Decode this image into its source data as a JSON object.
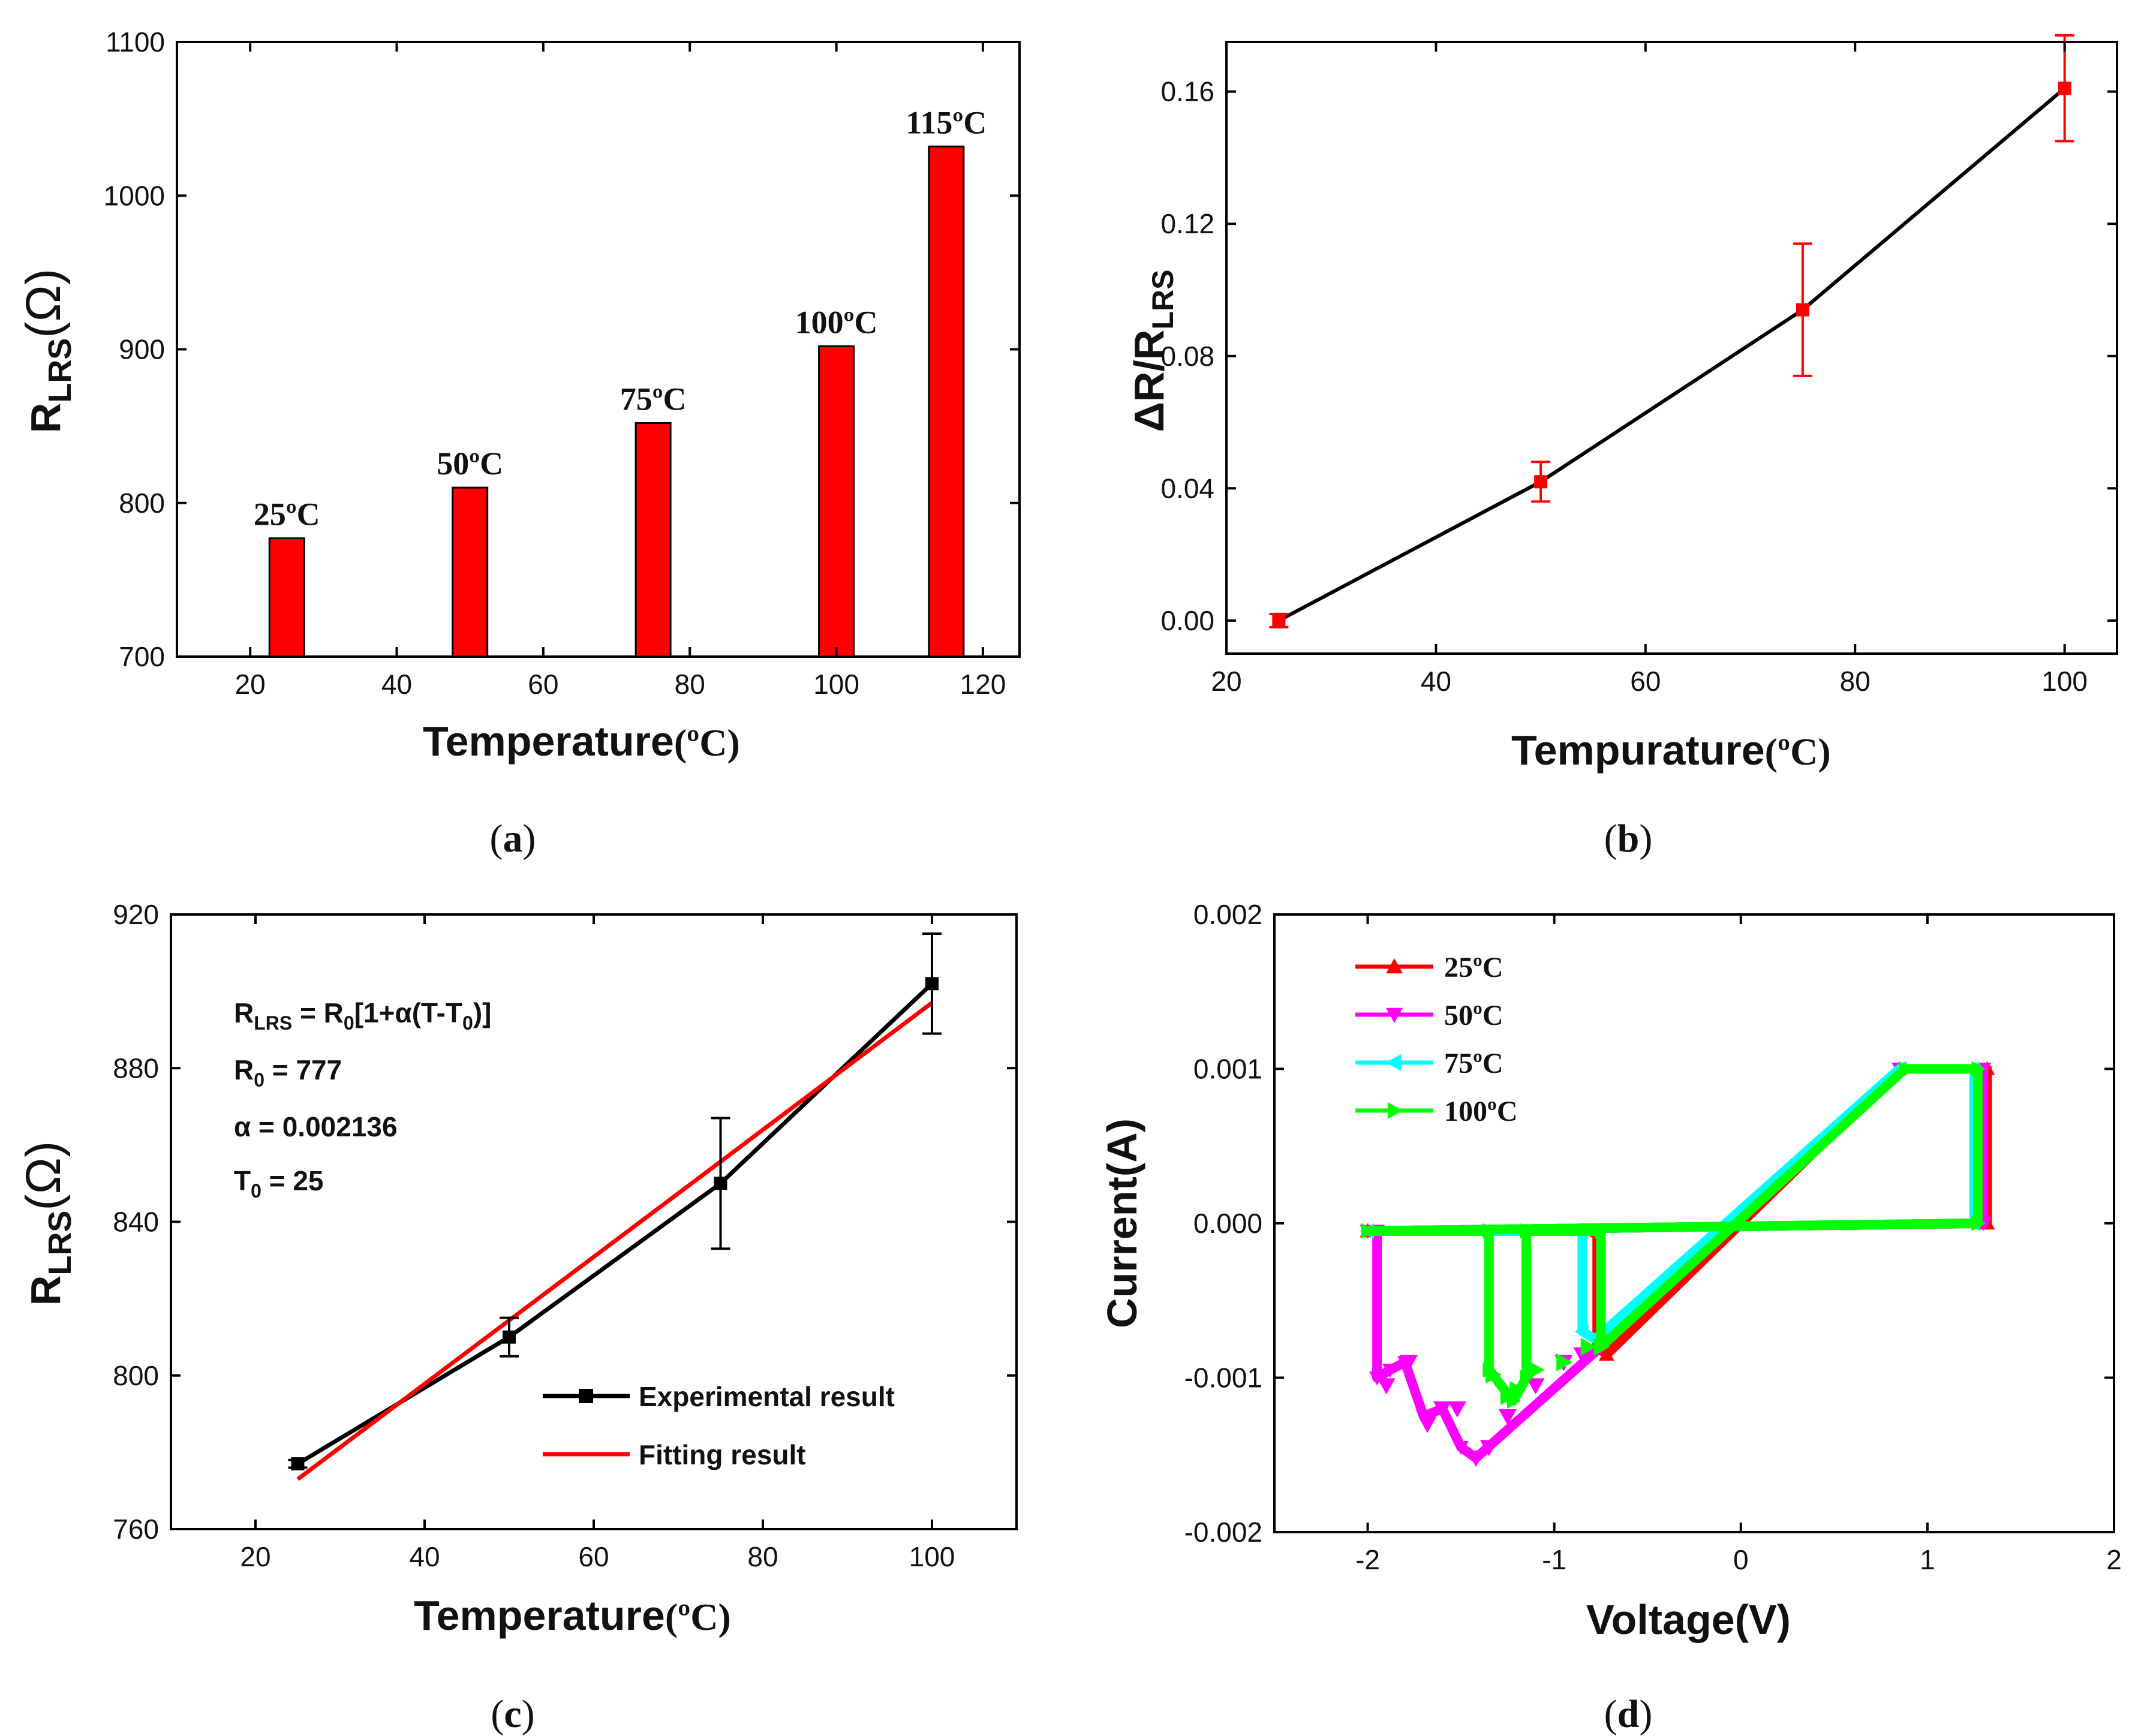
{
  "chart_data": [
    {
      "panel": "(a)",
      "type": "bar",
      "xlabel": "Temperature",
      "xlabel_unit": "(ºC)",
      "ylabel": "R",
      "ylabel_sub": "LRS",
      "ylabel_unit": "(Ω)",
      "xlim": [
        10,
        125
      ],
      "ylim": [
        700,
        1100
      ],
      "xticks": [
        "20",
        "40",
        "60",
        "80",
        "100",
        "120"
      ],
      "yticks": [
        "700",
        "800",
        "900",
        "1000",
        "1100"
      ],
      "bar_color": "#ff0000",
      "bars": [
        {
          "x": 25,
          "value": 777,
          "label": "25ºC"
        },
        {
          "x": 50,
          "value": 810,
          "label": "50ºC"
        },
        {
          "x": 75,
          "value": 852,
          "label": "75ºC"
        },
        {
          "x": 100,
          "value": 902,
          "label": "100ºC"
        },
        {
          "x": 115,
          "value": 1032,
          "label": "115ºC"
        }
      ]
    },
    {
      "panel": "(b)",
      "type": "line",
      "xlabel": "Tempurature",
      "xlabel_unit": "(ºC)",
      "ylabel": "ΔR/R",
      "ylabel_sub": "LRS",
      "xlim": [
        20,
        105
      ],
      "ylim": [
        -0.01,
        0.175
      ],
      "xticks": [
        "20",
        "40",
        "60",
        "80",
        "100"
      ],
      "yticks": [
        "0.00",
        "0.04",
        "0.08",
        "0.12",
        "0.16"
      ],
      "line_color": "#000000",
      "marker_color": "#ff0000",
      "points": [
        {
          "x": 25,
          "y": 0.0,
          "err": 0.002
        },
        {
          "x": 50,
          "y": 0.042,
          "err": 0.006
        },
        {
          "x": 75,
          "y": 0.094,
          "err": 0.02
        },
        {
          "x": 100,
          "y": 0.161,
          "err": 0.016
        }
      ]
    },
    {
      "panel": "(c)",
      "type": "line",
      "xlabel": "Temperature",
      "xlabel_unit": "(ºC)",
      "ylabel": "R",
      "ylabel_sub": "LRS",
      "ylabel_unit": "(Ω)",
      "xlim": [
        10,
        110
      ],
      "ylim": [
        760,
        920
      ],
      "xticks": [
        "20",
        "40",
        "60",
        "80",
        "100"
      ],
      "yticks": [
        "760",
        "800",
        "840",
        "880",
        "920"
      ],
      "equation": {
        "line1_a": "R",
        "line1_sub": "LRS",
        "line1_b": " = R",
        "line1_sub2": "0",
        "line1_c": "[1+α(T-T",
        "line1_sub3": "0",
        "line1_d": ")]",
        "line2_a": "R",
        "line2_sub": "0",
        "line2_b": " = 777",
        "line3": "α = 0.002136",
        "line4_a": "T",
        "line4_sub": "0",
        "line4_b": " = 25"
      },
      "series": [
        {
          "name": "Experimental result",
          "color": "#000000",
          "x": [
            25,
            50,
            75,
            100
          ],
          "y": [
            777,
            810,
            850,
            902
          ],
          "err": [
            1,
            5,
            17,
            13
          ]
        },
        {
          "name": "Fitting result",
          "color": "#ff0000",
          "x": [
            25,
            100
          ],
          "y": [
            773,
            897
          ]
        }
      ]
    },
    {
      "panel": "(d)",
      "type": "line",
      "xlabel": "Voltage(V)",
      "ylabel": "Current(A)",
      "xlim": [
        -2.5,
        2
      ],
      "ylim": [
        -0.002,
        0.002
      ],
      "xticks": [
        "-2",
        "-1",
        "0",
        "1",
        "2"
      ],
      "yticks": [
        "-0.002",
        "-0.001",
        "0.000",
        "0.001",
        "0.002"
      ],
      "series": [
        {
          "name": "25ºC",
          "color": "#ff0000",
          "marker": "up",
          "x": [
            -2.0,
            1.32,
            1.32,
            0.85,
            -0.72,
            -0.77,
            -0.77,
            -2.0
          ],
          "y": [
            -5e-05,
            0.0,
            0.001,
            0.001,
            -0.00085,
            -0.0008,
            -5e-05,
            -5e-05
          ]
        },
        {
          "name": "50ºC",
          "color": "#ff00ff",
          "marker": "down",
          "x": [
            -2.0,
            1.3,
            1.3,
            0.85,
            -0.75,
            -1.42,
            -1.5,
            -1.6,
            -1.7,
            -1.8,
            -1.88,
            -1.95,
            -1.95,
            -2.0
          ],
          "y": [
            -5e-05,
            0.0,
            0.001,
            0.001,
            -0.0008,
            -0.00152,
            -0.00145,
            -0.0012,
            -0.00125,
            -0.0009,
            -0.00095,
            -0.001,
            -5e-05,
            -5e-05
          ],
          "marker_x": [
            -1.9,
            -1.78,
            -1.68,
            -1.6,
            -1.52,
            -1.42,
            -1.35,
            -1.25,
            -1.1,
            -0.95,
            -0.85
          ],
          "marker_y": [
            -0.00105,
            -0.0009,
            -0.0013,
            -0.0012,
            -0.0012,
            -0.00152,
            -0.00145,
            -0.00125,
            -0.00105,
            -0.0009,
            -0.00085
          ]
        },
        {
          "name": "75ºC",
          "color": "#00ffff",
          "marker": "left",
          "x": [
            -2.0,
            1.25,
            1.25,
            0.85,
            -0.78,
            -0.85,
            -0.85,
            -2.0
          ],
          "y": [
            -5e-05,
            0.0,
            0.001,
            0.001,
            -0.00075,
            -0.0007,
            -5e-05,
            -5e-05
          ]
        },
        {
          "name": "100ºC",
          "color": "#00ff00",
          "marker": "right",
          "x": [
            -2.0,
            1.27,
            1.27,
            0.88,
            -0.75,
            -0.75,
            -1.15,
            -1.15,
            -1.22,
            -1.35,
            -1.35,
            -2.0
          ],
          "y": [
            -5e-05,
            0.0,
            0.001,
            0.001,
            -0.0008,
            -5e-05,
            -5e-05,
            -0.001,
            -0.00115,
            -0.00095,
            -5e-05,
            -5e-05
          ],
          "marker_x": [
            -1.33,
            -1.25,
            -1.2,
            -1.1,
            -0.95,
            -0.82,
            -0.75
          ],
          "marker_y": [
            -0.00098,
            -0.00112,
            -0.00108,
            -0.00095,
            -0.0009,
            -0.0008,
            -0.0008
          ]
        }
      ],
      "legend": [
        "25ºC",
        "50ºC",
        "75ºC",
        "100ºC"
      ]
    }
  ]
}
